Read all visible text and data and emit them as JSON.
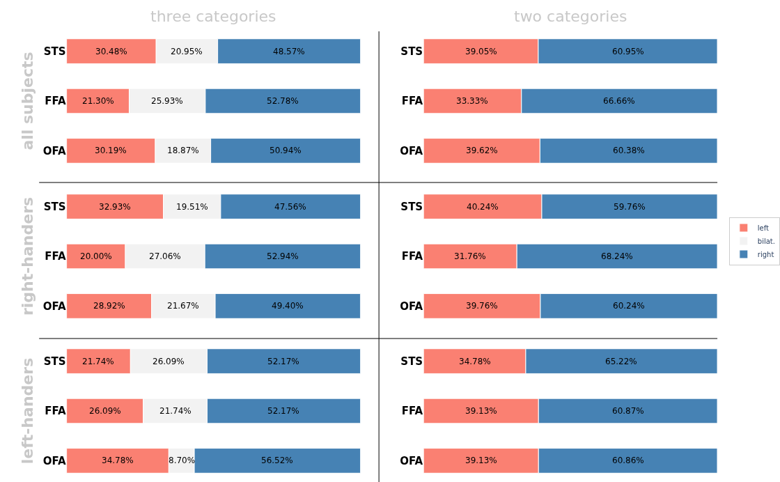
{
  "chart_data": [
    {
      "type": "bar",
      "orientation": "horizontal",
      "stacked": true,
      "title": "three categories",
      "ylabel": "all subjects",
      "categories": [
        "STS",
        "FFA",
        "OFA"
      ],
      "xlim": [
        0,
        100
      ],
      "tick_labels": "y",
      "series": [
        {
          "color": "#fa8072",
          "values": [
            30.48,
            21.3,
            30.19
          ],
          "value_labels": [
            "30.48%",
            "21.30%",
            "30.19%"
          ]
        },
        {
          "color": "#f2f2f2",
          "values": [
            20.95,
            25.93,
            18.87
          ],
          "value_labels": [
            "20.95%",
            "25.93%",
            "18.87%"
          ]
        },
        {
          "color": "#4682b4",
          "values": [
            48.57,
            52.78,
            50.94
          ],
          "value_labels": [
            "48.57%",
            "52.78%",
            "50.94%"
          ]
        }
      ]
    },
    {
      "type": "bar",
      "orientation": "horizontal",
      "stacked": true,
      "title": "two categories",
      "categories": [
        "STS",
        "FFA",
        "OFA"
      ],
      "xlim": [
        0,
        100
      ],
      "tick_labels": "y",
      "series": [
        {
          "color": "#fa8072",
          "values": [
            39.05,
            33.33,
            39.62
          ],
          "value_labels": [
            "39.05%",
            "33.33%",
            "39.62%"
          ]
        },
        {
          "color": "#4682b4",
          "values": [
            60.95,
            66.66,
            60.38
          ],
          "value_labels": [
            "60.95%",
            "66.66%",
            "60.38%"
          ]
        }
      ]
    },
    {
      "type": "bar",
      "orientation": "horizontal",
      "stacked": true,
      "ylabel": "right-handers",
      "categories": [
        "STS",
        "FFA",
        "OFA"
      ],
      "xlim": [
        0,
        100
      ],
      "tick_labels": "y",
      "legend": "right",
      "series": [
        {
          "name": "left",
          "color": "#fa8072",
          "values": [
            32.93,
            20.0,
            28.92
          ],
          "value_labels": [
            "32.93%",
            "20.00%",
            "28.92%"
          ]
        },
        {
          "name": "bilat.",
          "color": "#f2f2f2",
          "values": [
            19.51,
            27.06,
            21.67
          ],
          "value_labels": [
            "19.51%",
            "27.06%",
            "21.67%"
          ]
        },
        {
          "name": "right",
          "color": "#4682b4",
          "values": [
            47.56,
            52.94,
            49.4
          ],
          "value_labels": [
            "47.56%",
            "52.94%",
            "49.40%"
          ]
        }
      ]
    },
    {
      "type": "bar",
      "orientation": "horizontal",
      "stacked": true,
      "categories": [
        "STS",
        "FFA",
        "OFA"
      ],
      "xlim": [
        0,
        100
      ],
      "tick_labels": "y",
      "series": [
        {
          "color": "#fa8072",
          "values": [
            40.24,
            31.76,
            39.76
          ],
          "value_labels": [
            "40.24%",
            "31.76%",
            "39.76%"
          ]
        },
        {
          "color": "#4682b4",
          "values": [
            59.76,
            68.24,
            60.24
          ],
          "value_labels": [
            "59.76%",
            "68.24%",
            "60.24%"
          ]
        }
      ]
    },
    {
      "type": "bar",
      "orientation": "horizontal",
      "stacked": true,
      "ylabel": "left-handers",
      "categories": [
        "STS",
        "FFA",
        "OFA"
      ],
      "xlim": [
        0,
        100
      ],
      "tick_labels": "y",
      "series": [
        {
          "color": "#fa8072",
          "values": [
            21.74,
            26.09,
            34.78
          ],
          "value_labels": [
            "21.74%",
            "26.09%",
            "34.78%"
          ]
        },
        {
          "color": "#f2f2f2",
          "values": [
            26.09,
            21.74,
            8.7
          ],
          "value_labels": [
            "26.09%",
            "21.74%",
            "8.70%"
          ]
        },
        {
          "color": "#4682b4",
          "values": [
            52.17,
            52.17,
            56.52
          ],
          "value_labels": [
            "52.17%",
            "52.17%",
            "56.52%"
          ]
        }
      ]
    },
    {
      "type": "bar",
      "orientation": "horizontal",
      "stacked": true,
      "categories": [
        "STS",
        "FFA",
        "OFA"
      ],
      "xlim": [
        0,
        100
      ],
      "tick_labels": "y",
      "series": [
        {
          "color": "#fa8072",
          "values": [
            34.78,
            39.13,
            39.13
          ],
          "value_labels": [
            "34.78%",
            "39.13%",
            "39.13%"
          ]
        },
        {
          "color": "#4682b4",
          "values": [
            65.22,
            60.87,
            60.86
          ],
          "value_labels": [
            "65.22%",
            "60.87%",
            "60.86%"
          ]
        }
      ]
    }
  ]
}
